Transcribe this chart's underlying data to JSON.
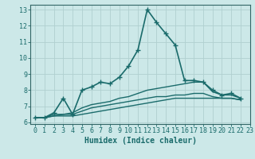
{
  "xlabel": "Humidex (Indice chaleur)",
  "ylabel": "",
  "xlim": [
    -0.5,
    23
  ],
  "ylim": [
    5.9,
    13.3
  ],
  "xticks": [
    0,
    1,
    2,
    3,
    4,
    5,
    6,
    7,
    8,
    9,
    10,
    11,
    12,
    13,
    14,
    15,
    16,
    17,
    18,
    19,
    20,
    21,
    22,
    23
  ],
  "yticks": [
    6,
    7,
    8,
    9,
    10,
    11,
    12,
    13
  ],
  "bg_color": "#cce8e8",
  "grid_color": "#b0d0d0",
  "line_color": "#1a6b6b",
  "series": [
    {
      "x": [
        0,
        1,
        2,
        3,
        4,
        5,
        6,
        7,
        8,
        9,
        10,
        11,
        12,
        13,
        14,
        15,
        16,
        17,
        18,
        19,
        20,
        21,
        22
      ],
      "y": [
        6.3,
        6.3,
        6.6,
        7.5,
        6.5,
        8.0,
        8.2,
        8.5,
        8.4,
        8.8,
        9.5,
        10.5,
        13.0,
        12.2,
        11.5,
        10.8,
        8.6,
        8.6,
        8.5,
        8.0,
        7.7,
        7.8,
        7.5
      ],
      "marker": true,
      "linewidth": 1.2
    },
    {
      "x": [
        0,
        1,
        2,
        3,
        4,
        5,
        6,
        7,
        8,
        9,
        10,
        11,
        12,
        13,
        14,
        15,
        16,
        17,
        18,
        19,
        20,
        21,
        22
      ],
      "y": [
        6.3,
        6.3,
        6.5,
        6.5,
        6.6,
        6.9,
        7.1,
        7.2,
        7.3,
        7.5,
        7.6,
        7.8,
        8.0,
        8.1,
        8.2,
        8.3,
        8.4,
        8.5,
        8.5,
        7.9,
        7.7,
        7.7,
        7.5
      ],
      "marker": false,
      "linewidth": 1.0
    },
    {
      "x": [
        0,
        1,
        2,
        3,
        4,
        5,
        6,
        7,
        8,
        9,
        10,
        11,
        12,
        13,
        14,
        15,
        16,
        17,
        18,
        19,
        20,
        21,
        22
      ],
      "y": [
        6.3,
        6.3,
        6.4,
        6.5,
        6.5,
        6.7,
        6.9,
        7.0,
        7.1,
        7.2,
        7.3,
        7.4,
        7.5,
        7.6,
        7.6,
        7.7,
        7.7,
        7.8,
        7.8,
        7.6,
        7.5,
        7.5,
        7.4
      ],
      "marker": false,
      "linewidth": 1.0
    },
    {
      "x": [
        0,
        1,
        2,
        3,
        4,
        5,
        6,
        7,
        8,
        9,
        10,
        11,
        12,
        13,
        14,
        15,
        16,
        17,
        18,
        19,
        20,
        21,
        22
      ],
      "y": [
        6.3,
        6.3,
        6.4,
        6.4,
        6.4,
        6.5,
        6.6,
        6.7,
        6.8,
        6.9,
        7.0,
        7.1,
        7.2,
        7.3,
        7.4,
        7.5,
        7.5,
        7.5,
        7.5,
        7.5,
        7.5,
        7.5,
        7.4
      ],
      "marker": false,
      "linewidth": 1.0
    }
  ],
  "tick_fontsize": 6.0,
  "xlabel_fontsize": 7.0,
  "spine_color": "#336666"
}
